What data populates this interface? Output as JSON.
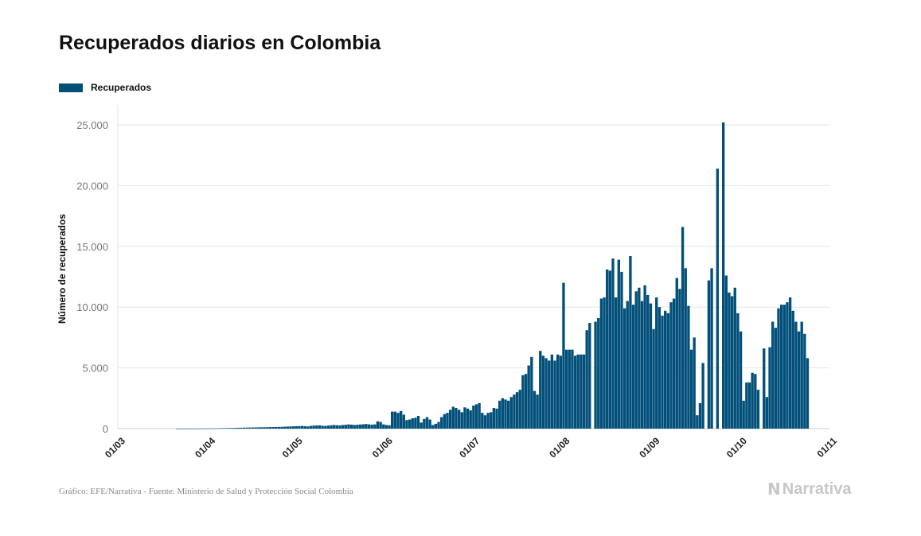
{
  "colors": {
    "bar": "#02507a",
    "grid": "#e6e6e6",
    "axis": "#cccccc"
  },
  "source": "Gráfico: EFE/Narrativa - Fuente: Ministerio de Salud y Protección Social Colombia",
  "logo": {
    "text": "Narrativa",
    "icon": "narrativa-n-icon"
  },
  "chart_data": {
    "type": "bar",
    "title": "Recuperados diarios en Colombia",
    "xlabel": "",
    "ylabel": "Número de recuperados",
    "legend": {
      "position": "top-left",
      "entries": [
        "Recuperados"
      ]
    },
    "grid": true,
    "ylim": [
      0,
      25000
    ],
    "yticks": [
      "0",
      "5.000",
      "10.000",
      "15.000",
      "20.000",
      "25.000"
    ],
    "xticks": [
      "01/03",
      "01/04",
      "01/05",
      "01/06",
      "01/07",
      "01/08",
      "01/09",
      "01/10",
      "01/11"
    ],
    "x_range": [
      "2020-03-01",
      "2020-11-01"
    ],
    "start_date": "2020-03-01",
    "series": [
      {
        "name": "Recuperados",
        "values": [
          0,
          0,
          0,
          0,
          0,
          0,
          0,
          0,
          0,
          0,
          0,
          0,
          0,
          0,
          0,
          0,
          0,
          0,
          0,
          0,
          1,
          2,
          3,
          3,
          5,
          5,
          8,
          10,
          10,
          12,
          15,
          18,
          20,
          25,
          30,
          35,
          40,
          45,
          50,
          55,
          60,
          70,
          75,
          80,
          85,
          90,
          95,
          100,
          105,
          110,
          115,
          120,
          125,
          130,
          135,
          140,
          150,
          160,
          170,
          180,
          190,
          200,
          210,
          220,
          200,
          180,
          230,
          250,
          260,
          270,
          240,
          220,
          250,
          280,
          300,
          280,
          260,
          300,
          320,
          350,
          330,
          300,
          320,
          340,
          360,
          380,
          350,
          330,
          350,
          600,
          550,
          350,
          300,
          280,
          1400,
          1400,
          1300,
          1450,
          1150,
          700,
          750,
          850,
          900,
          1050,
          500,
          800,
          950,
          750,
          300,
          400,
          550,
          950,
          1200,
          1300,
          1550,
          1800,
          1700,
          1550,
          1350,
          1750,
          1650,
          1500,
          1900,
          2000,
          2100,
          1300,
          1100,
          1300,
          1350,
          1700,
          1650,
          2300,
          2500,
          2400,
          2300,
          2600,
          2800,
          3000,
          3200,
          4400,
          4500,
          5200,
          5900,
          3100,
          2800,
          6400,
          6000,
          5800,
          5600,
          6100,
          5600,
          6100,
          6000,
          12000,
          6500,
          6500,
          6500,
          6000,
          6100,
          6100,
          6100,
          8100,
          8700,
          0,
          8800,
          9100,
          10700,
          10800,
          13100,
          13000,
          14000,
          10800,
          13900,
          12900,
          9900,
          10500,
          14200,
          10200,
          11300,
          11600,
          10500,
          11800,
          11000,
          10300,
          8200,
          10800,
          10000,
          9300,
          9700,
          9500,
          10400,
          10700,
          12400,
          11500,
          16600,
          13200,
          10100,
          6500,
          7500,
          1100,
          2100,
          5400,
          0,
          12200,
          13200,
          0,
          21400,
          0,
          25200,
          12600,
          11200,
          10900,
          11600,
          9500,
          8000,
          2300,
          3800,
          3800,
          4600,
          4500,
          3200,
          0,
          6600,
          2600,
          6700,
          8800,
          8300,
          9900,
          10200,
          10200,
          10400,
          10800,
          9700,
          8800,
          8000,
          8800,
          7800,
          5800
        ]
      }
    ]
  }
}
